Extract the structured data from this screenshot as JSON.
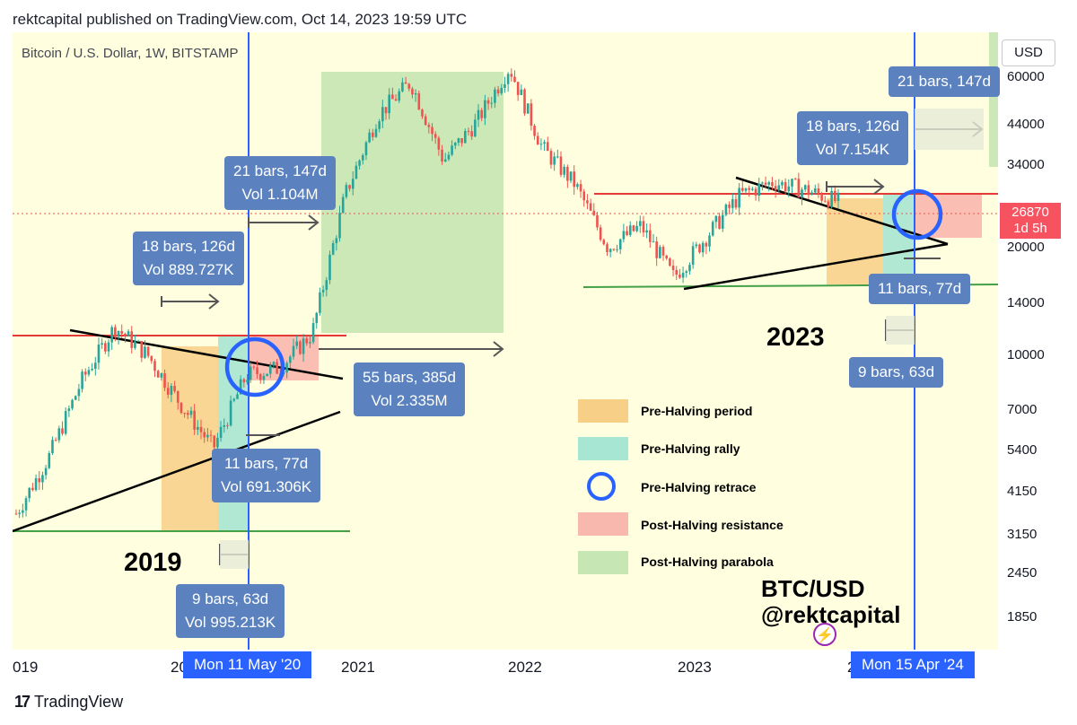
{
  "header": "rektcapital published on TradingView.com, Oct 14, 2023 19:59 UTC",
  "instrument": "Bitcoin / U.S. Dollar, 1W, BITSTAMP",
  "currency_button": "USD",
  "price_tag": {
    "price": "26870",
    "countdown": "1d 5h"
  },
  "time_axis": {
    "labels": [
      "019",
      "20",
      "2021",
      "2022",
      "2023",
      "2"
    ],
    "cursor_left": "Mon 11 May '20",
    "cursor_right": "Mon 15 Apr '24"
  },
  "annotations": {
    "left_18": {
      "line1": "18 bars, 126d",
      "line2": "Vol 889.727K"
    },
    "left_21": {
      "line1": "21 bars, 147d",
      "line2": "Vol 1.104M"
    },
    "mid_55": {
      "line1": "55 bars, 385d",
      "line2": "Vol 2.335M"
    },
    "left_11": {
      "line1": "11 bars, 77d",
      "line2": "Vol 691.306K"
    },
    "left_9": {
      "line1": "9 bars, 63d",
      "line2": "Vol 995.213K"
    },
    "right_21": {
      "line1": "21 bars, 147d"
    },
    "right_18": {
      "line1": "18 bars, 126d",
      "line2": "Vol 7.154K"
    },
    "right_11": {
      "line1": "11 bars, 77d"
    },
    "right_9": {
      "line1": "9 bars, 63d"
    }
  },
  "years": {
    "y2019": "2019",
    "y2023": "2023"
  },
  "legend": [
    {
      "label": "Pre-Halving period",
      "color": "#f8cf86"
    },
    {
      "label": "Pre-Halving rally",
      "color": "#a7e6d2"
    },
    {
      "label": "Pre-Halving retrace",
      "color": "#2962ff"
    },
    {
      "label": "Post-Halving resistance",
      "color": "#f9b8ad"
    },
    {
      "label": "Post-Halving parabola",
      "color": "#c6e6b3"
    }
  ],
  "watermark": {
    "line1": "BTC/USD",
    "line2": "@rektcapital"
  },
  "footer": {
    "mark": "17",
    "brand": "TradingView"
  },
  "colors": {
    "up": "#26a69a",
    "down": "#ef5350",
    "resistance": "#e53935",
    "support": "#43a047",
    "halving_line": "#2962ff",
    "background": "#ffffe0"
  },
  "chart_data": {
    "type": "candlestick",
    "symbol": "BTC/USD",
    "timeframe": "1W",
    "y_scale": "log",
    "y_ticks": [
      60000,
      44000,
      34000,
      20000,
      14000,
      10000,
      7000,
      5400,
      4150,
      3150,
      2450,
      1850
    ],
    "current_price": 26870,
    "halving_dates": [
      "2020-05-11",
      "2024-04-15"
    ],
    "x": [
      "2019-01",
      "2019-04",
      "2019-06",
      "2019-07",
      "2019-09",
      "2019-12",
      "2020-03",
      "2020-05",
      "2020-07",
      "2020-10",
      "2020-12",
      "2021-02",
      "2021-04",
      "2021-06",
      "2021-09",
      "2021-11",
      "2022-01",
      "2022-05",
      "2022-06",
      "2022-08",
      "2022-11",
      "2023-01",
      "2023-03",
      "2023-06",
      "2023-07",
      "2023-10"
    ],
    "close": [
      3600,
      5200,
      8500,
      12000,
      10000,
      7300,
      5500,
      8800,
      9200,
      11500,
      28000,
      47000,
      58000,
      35000,
      45000,
      64000,
      38000,
      30000,
      20000,
      23000,
      16500,
      21500,
      28000,
      30500,
      29000,
      26870
    ]
  }
}
